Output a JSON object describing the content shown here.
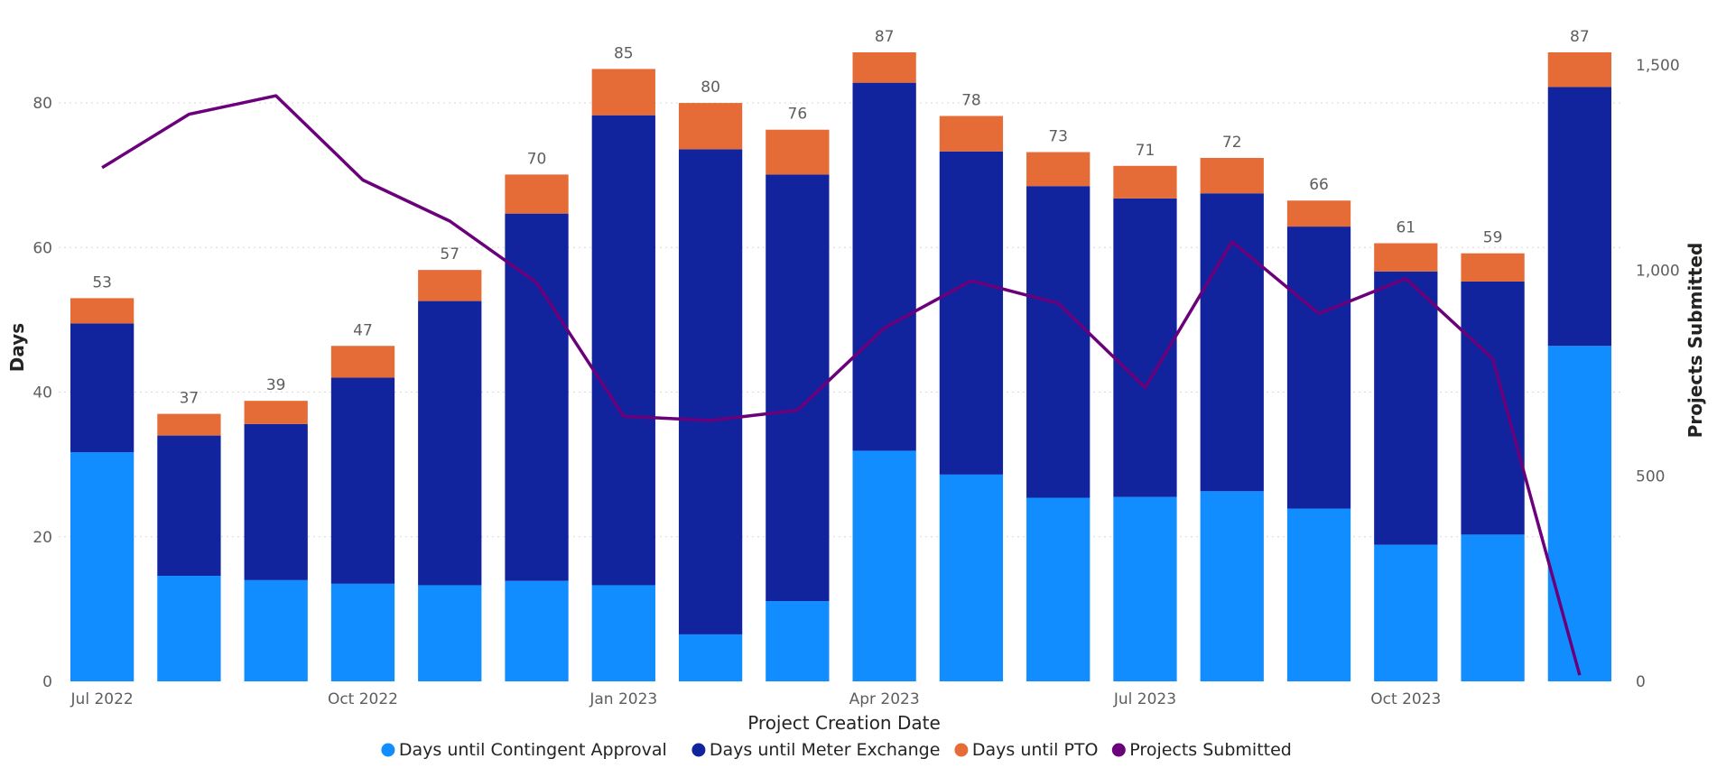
{
  "chart_data": {
    "type": "bar",
    "subtype": "stacked-bar-with-line",
    "x": [
      "2022-07",
      "2022-08",
      "2022-09",
      "2022-10",
      "2022-11",
      "2022-12",
      "2023-01",
      "2023-02",
      "2023-03",
      "2023-04",
      "2023-05",
      "2023-06",
      "2023-07",
      "2023-08",
      "2023-09",
      "2023-10",
      "2023-11",
      "2023-12"
    ],
    "x_tick_labels": [
      "Jul 2022",
      "",
      "",
      "Oct 2022",
      "",
      "",
      "Jan 2023",
      "",
      "",
      "Apr 2023",
      "",
      "",
      "Jul 2023",
      "",
      "",
      "Oct 2023",
      "",
      ""
    ],
    "xlabel": "Project Creation Date",
    "ylabel": "Days",
    "y2label": "Projects Submitted",
    "ylim": [
      0,
      87
    ],
    "y_ticks": [
      0,
      20,
      40,
      60,
      80
    ],
    "y2lim": [
      0,
      1500
    ],
    "y2_ticks": [
      0,
      500,
      1000,
      1500
    ],
    "y2_tick_labels": [
      "0",
      "500",
      "1,000",
      "1,500"
    ],
    "grid": true,
    "legend_position": "bottom",
    "series": [
      {
        "name": "Days until Contingent Approval",
        "axis": "left",
        "type": "bar",
        "color": "#118dff",
        "values": [
          31.7,
          14.6,
          14.0,
          13.5,
          13.3,
          13.9,
          13.3,
          6.5,
          11.1,
          31.9,
          28.6,
          25.4,
          25.5,
          26.3,
          23.9,
          18.9,
          20.3,
          46.4
        ]
      },
      {
        "name": "Days until Meter Exchange",
        "axis": "left",
        "type": "bar",
        "color": "#12239e",
        "values": [
          17.8,
          19.4,
          21.6,
          28.5,
          39.3,
          50.8,
          65.0,
          67.1,
          59.0,
          50.9,
          44.7,
          43.1,
          41.3,
          41.2,
          39.0,
          37.8,
          35.0,
          35.8
        ]
      },
      {
        "name": "Days until PTO",
        "axis": "left",
        "type": "bar",
        "color": "#e66c37",
        "values": [
          3.5,
          3.0,
          3.2,
          4.4,
          4.3,
          5.4,
          6.4,
          6.4,
          6.2,
          4.2,
          4.9,
          4.7,
          4.5,
          4.9,
          3.6,
          3.9,
          3.9,
          4.8
        ]
      },
      {
        "name": "Projects Submitted",
        "axis": "right",
        "type": "line",
        "color": "#6b007b",
        "values": [
          1250,
          1380,
          1425,
          1220,
          1120,
          970,
          645,
          635,
          660,
          860,
          975,
          920,
          715,
          1070,
          895,
          980,
          785,
          15
        ]
      }
    ],
    "totals": [
      53,
      37,
      39,
      47,
      57,
      70,
      85,
      80,
      76,
      87,
      78,
      73,
      71,
      72,
      66,
      61,
      59,
      87
    ]
  }
}
